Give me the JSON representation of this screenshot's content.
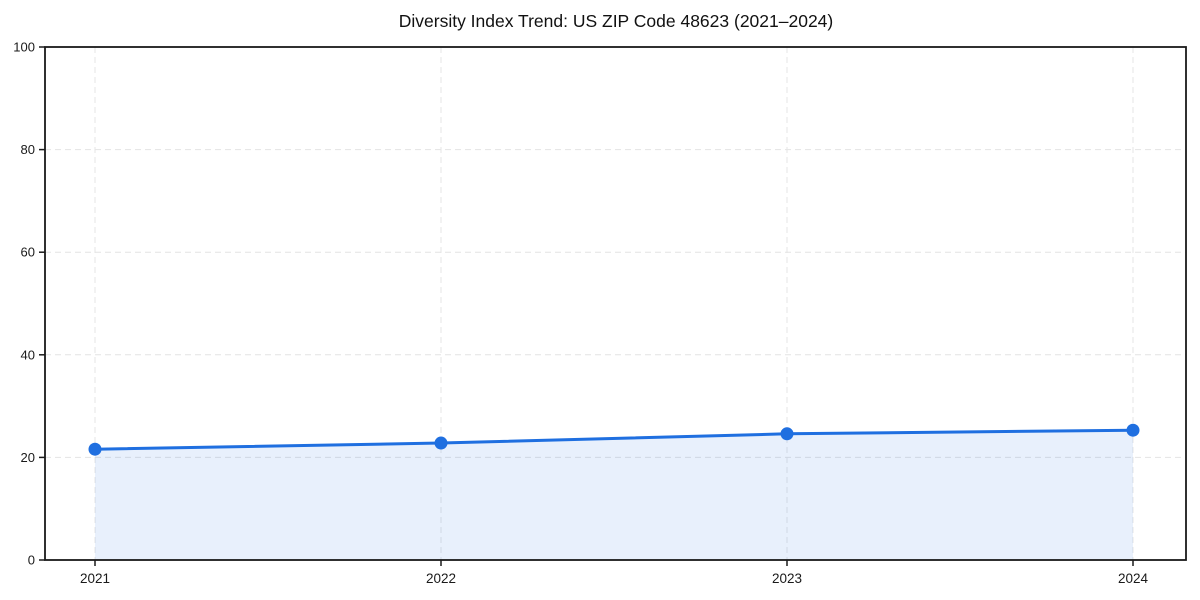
{
  "chart_data": {
    "type": "line",
    "title": "Diversity Index Trend: US ZIP Code 48623 (2021–2024)",
    "categories": [
      "2021",
      "2022",
      "2023",
      "2024"
    ],
    "series": [
      {
        "name": "Diversity Index",
        "values": [
          21.6,
          22.8,
          24.6,
          25.3
        ]
      }
    ],
    "xlabel": "",
    "ylabel": "",
    "ylim": [
      0,
      100
    ],
    "yticks": [
      0,
      20,
      40,
      60,
      80,
      100
    ],
    "grid": true,
    "grid_style": "dashed",
    "legend_position": "none",
    "marker": "circle",
    "area_fill": true,
    "colors": {
      "line": "#1f6fe0",
      "marker": "#1f6fe0",
      "area_fill": "#1f6fe0",
      "area_fill_opacity": 0.1,
      "grid": "#e4e4e4",
      "spine": "#1a1a1a",
      "tick_label": "#1a1a1a",
      "title": "#111111",
      "background": "#ffffff"
    }
  }
}
